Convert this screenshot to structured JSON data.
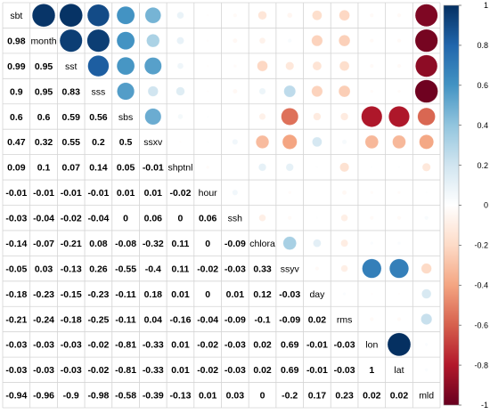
{
  "chart_data": {
    "type": "heatmap",
    "style": "correlation-matrix: upper triangle circles, lower triangle coefficients, variable names on diagonal",
    "variables": [
      "sbt",
      "month",
      "sst",
      "sss",
      "sbs",
      "ssxv",
      "shptnl",
      "hour",
      "ssh",
      "chlora",
      "ssyv",
      "day",
      "rms",
      "lon",
      "lat",
      "mld"
    ],
    "matrix": [
      [
        1,
        0.98,
        0.99,
        0.9,
        0.6,
        0.47,
        0.09,
        -0.01,
        -0.03,
        -0.14,
        -0.05,
        -0.18,
        -0.21,
        -0.03,
        -0.03,
        -0.94
      ],
      [
        0.98,
        1,
        0.95,
        0.95,
        0.6,
        0.32,
        0.1,
        -0.01,
        -0.04,
        -0.07,
        0.03,
        -0.23,
        -0.24,
        -0.03,
        -0.03,
        -0.96
      ],
      [
        0.99,
        0.95,
        1,
        0.83,
        0.59,
        0.55,
        0.07,
        -0.01,
        -0.02,
        -0.21,
        -0.13,
        -0.15,
        -0.18,
        -0.03,
        -0.03,
        -0.9
      ],
      [
        0.9,
        0.95,
        0.83,
        1,
        0.56,
        0.2,
        0.14,
        -0.01,
        -0.04,
        0.08,
        0.26,
        -0.23,
        -0.25,
        -0.02,
        -0.02,
        -0.98
      ],
      [
        0.6,
        0.6,
        0.59,
        0.56,
        1,
        0.5,
        0.05,
        0.01,
        0,
        -0.08,
        -0.55,
        -0.11,
        -0.11,
        -0.81,
        -0.81,
        -0.58
      ],
      [
        0.47,
        0.32,
        0.55,
        0.2,
        0.5,
        1,
        -0.01,
        0.01,
        0.06,
        -0.32,
        -0.4,
        0.18,
        0.04,
        -0.33,
        -0.33,
        -0.39
      ],
      [
        0.09,
        0.1,
        0.07,
        0.14,
        0.05,
        -0.01,
        1,
        -0.02,
        0,
        0.11,
        0.11,
        0.01,
        -0.16,
        0.01,
        0.01,
        -0.13
      ],
      [
        -0.01,
        -0.01,
        -0.01,
        -0.01,
        0.01,
        0.01,
        -0.02,
        1,
        0.06,
        0,
        -0.02,
        0,
        -0.04,
        -0.02,
        -0.02,
        0.01
      ],
      [
        -0.03,
        -0.04,
        -0.02,
        -0.04,
        0,
        0.06,
        0,
        0.06,
        1,
        -0.09,
        -0.03,
        0.01,
        -0.09,
        -0.03,
        -0.03,
        0.03
      ],
      [
        -0.14,
        -0.07,
        -0.21,
        0.08,
        -0.08,
        -0.32,
        0.11,
        0,
        -0.09,
        1,
        0.33,
        0.12,
        -0.1,
        0.02,
        0.02,
        0
      ],
      [
        -0.05,
        0.03,
        -0.13,
        0.26,
        -0.55,
        -0.4,
        0.11,
        -0.02,
        -0.03,
        0.33,
        1,
        -0.03,
        -0.09,
        0.69,
        0.69,
        -0.2
      ],
      [
        -0.18,
        -0.23,
        -0.15,
        -0.23,
        -0.11,
        0.18,
        0.01,
        0,
        0.01,
        0.12,
        -0.03,
        1,
        0.02,
        -0.01,
        -0.01,
        0.17
      ],
      [
        -0.21,
        -0.24,
        -0.18,
        -0.25,
        -0.11,
        0.04,
        -0.16,
        -0.04,
        -0.09,
        -0.1,
        -0.09,
        0.02,
        1,
        -0.03,
        -0.03,
        0.23
      ],
      [
        -0.03,
        -0.03,
        -0.03,
        -0.02,
        -0.81,
        -0.33,
        0.01,
        -0.02,
        -0.03,
        0.02,
        0.69,
        -0.01,
        -0.03,
        1,
        1,
        0.02
      ],
      [
        -0.03,
        -0.03,
        -0.03,
        -0.02,
        -0.81,
        -0.33,
        0.01,
        -0.02,
        -0.03,
        0.02,
        0.69,
        -0.01,
        -0.03,
        1,
        1,
        0.02
      ],
      [
        -0.94,
        -0.96,
        -0.9,
        -0.98,
        -0.58,
        -0.39,
        -0.13,
        0.01,
        0.03,
        0,
        -0.2,
        0.17,
        0.23,
        0.02,
        0.02,
        1
      ]
    ],
    "lower_labels": [
      [],
      [
        "0.98"
      ],
      [
        "0.99",
        "0.95"
      ],
      [
        "0.9",
        "0.95",
        "0.83"
      ],
      [
        "0.6",
        "0.6",
        "0.59",
        "0.56"
      ],
      [
        "0.47",
        "0.32",
        "0.55",
        "0.2",
        "0.5"
      ],
      [
        "0.09",
        "0.1",
        "0.07",
        "0.14",
        "0.05",
        "-0.01"
      ],
      [
        "-0.01",
        "-0.01",
        "-0.01",
        "-0.01",
        "0.01",
        "0.01",
        "-0.02"
      ],
      [
        "-0.03",
        "-0.04",
        "-0.02",
        "-0.04",
        "0",
        "0.06",
        "0",
        "0.06"
      ],
      [
        "-0.14",
        "-0.07",
        "-0.21",
        "0.08",
        "-0.08",
        "-0.32",
        "0.11",
        "0",
        "-0.09"
      ],
      [
        "-0.05",
        "0.03",
        "-0.13",
        "0.26",
        "-0.55",
        "-0.4",
        "0.11",
        "-0.02",
        "-0.03",
        "0.33"
      ],
      [
        "-0.18",
        "-0.23",
        "-0.15",
        "-0.23",
        "-0.11",
        "0.18",
        "0.01",
        "0",
        "0.01",
        "0.12",
        "-0.03"
      ],
      [
        "-0.21",
        "-0.24",
        "-0.18",
        "-0.25",
        "-0.11",
        "0.04",
        "-0.16",
        "-0.04",
        "-0.09",
        "-0.1",
        "-0.09",
        "0.02"
      ],
      [
        "-0.03",
        "-0.03",
        "-0.03",
        "-0.02",
        "-0.81",
        "-0.33",
        "0.01",
        "-0.02",
        "-0.03",
        "0.02",
        "0.69",
        "-0.01",
        "-0.03"
      ],
      [
        "-0.03",
        "-0.03",
        "-0.03",
        "-0.02",
        "-0.81",
        "-0.33",
        "0.01",
        "-0.02",
        "-0.03",
        "0.02",
        "0.69",
        "-0.01",
        "-0.03",
        "1"
      ],
      [
        "-0.94",
        "-0.96",
        "-0.9",
        "-0.98",
        "-0.58",
        "-0.39",
        "-0.13",
        "0.01",
        "0.03",
        "0",
        "-0.2",
        "0.17",
        "0.23",
        "0.02",
        "0.02"
      ]
    ],
    "colorbar": {
      "range": [
        -1,
        1
      ],
      "ticks": [
        "1",
        "0.8",
        "0.6",
        "0.4",
        "0.2",
        "0",
        "-0.2",
        "-0.4",
        "-0.6",
        "-0.8",
        "-1"
      ],
      "colors": {
        "neg1": "#67001F",
        "neg08": "#B2182B",
        "neg06": "#D6604D",
        "neg04": "#F4A582",
        "neg02": "#FDDBC7",
        "zero": "#FFFFFF",
        "pos02": "#D1E5F0",
        "pos04": "#92C5DE",
        "pos06": "#4393C3",
        "pos08": "#2166AC",
        "pos1": "#053061"
      }
    },
    "grid": true,
    "legend_position": "right"
  }
}
